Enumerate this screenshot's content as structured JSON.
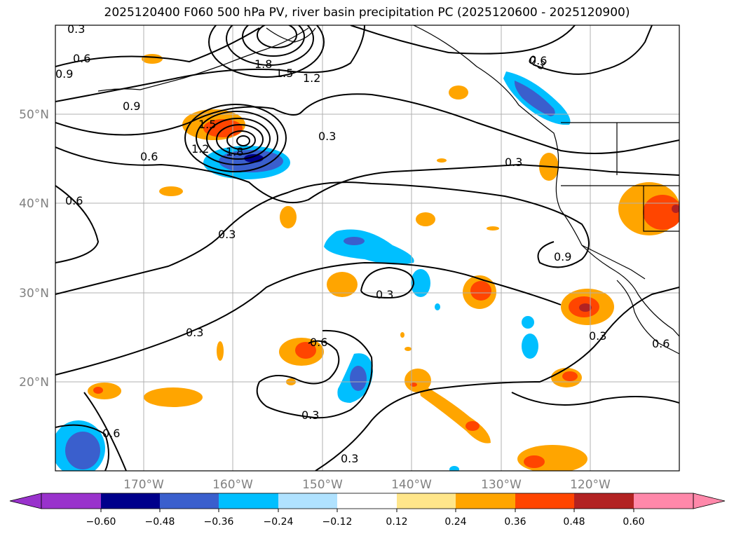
{
  "map": {
    "title": "2025120400 F060 500 hPa PV, river basin precipitation PC (2025120600 - 2025120900)",
    "lat_labels": [
      "50°N",
      "40°N",
      "30°N",
      "20°N"
    ],
    "lon_labels": [
      "170°W",
      "160°W",
      "150°W",
      "140°W",
      "130°W",
      "120°W"
    ],
    "contour_labels": [
      "0.3",
      "0.6",
      "0.9",
      "1.8",
      "1.5",
      "1.2",
      "0.6",
      "0.3",
      "0.9",
      "1.5",
      "1.2",
      "1.8",
      "0.3",
      "0.6",
      "0.6",
      "0.3",
      "0.3",
      "0.3",
      "0.9",
      "0.3",
      "0.3",
      "0.6",
      "0.3",
      "0.6",
      "0.3",
      "0.6"
    ],
    "colors": {
      "bins": [
        "#9932cc",
        "#00008b",
        "#3a5fcd",
        "#00bfff",
        "#b0e2ff",
        "#ffffff",
        "#ffe68a",
        "#ffa500",
        "#ff4500",
        "#b22222",
        "#ff88aa"
      ],
      "contour": "#000000",
      "grid": "#b0b0b0",
      "land_outline": "#000000"
    }
  },
  "colorbar": {
    "tick_labels": [
      "−0.60",
      "−0.48",
      "−0.36",
      "−0.24",
      "−0.12",
      "0.12",
      "0.24",
      "0.36",
      "0.48",
      "0.60"
    ]
  }
}
